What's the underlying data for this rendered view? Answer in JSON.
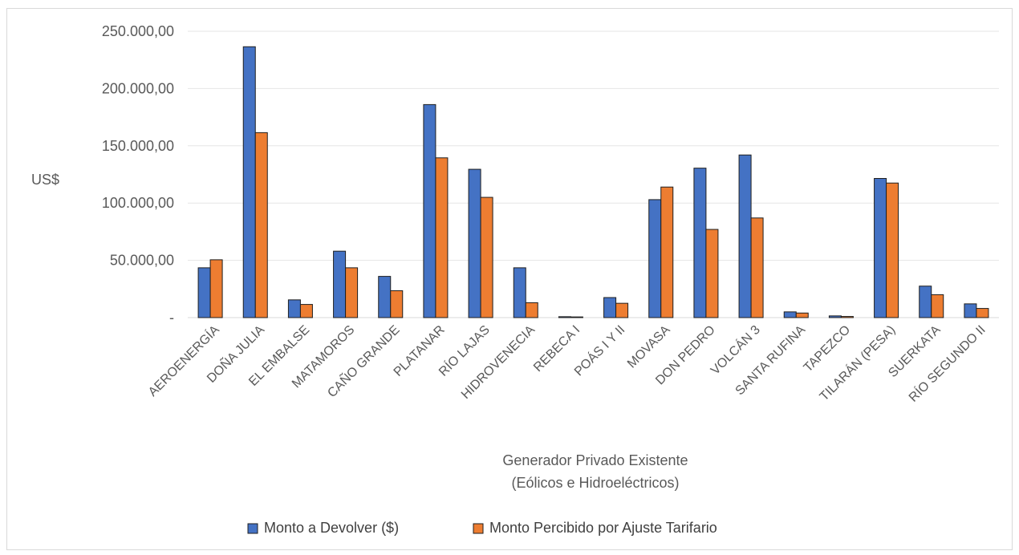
{
  "chart_data": {
    "type": "bar",
    "ylabel": "US$",
    "xlabel_line1": "Generador Privado Existente",
    "xlabel_line2": "(Eólicos e Hidroeléctricos)",
    "ylim": [
      0,
      250000
    ],
    "yticks": [
      {
        "value": 0,
        "label": "-"
      },
      {
        "value": 50000,
        "label": "50.000,00"
      },
      {
        "value": 100000,
        "label": "100.000,00"
      },
      {
        "value": 150000,
        "label": "150.000,00"
      },
      {
        "value": 200000,
        "label": "200.000,00"
      },
      {
        "value": 250000,
        "label": "250.000,00"
      }
    ],
    "grid": true,
    "legend_position": "bottom",
    "categories": [
      "AEROENERGÍA",
      "DOÑA JULIA",
      "EL EMBALSE",
      "MATAMOROS",
      "CAÑO GRANDE",
      "PLATANAR",
      "RÍO LAJAS",
      "HIDROVENECIA",
      "REBECA I",
      "POÁS I Y II",
      "MOVASA",
      "DON PEDRO",
      "VOLCÁN 3",
      "SANTA RUFINA",
      "TAPEZCO",
      "TILARÁN (PESA)",
      "SUERKATA",
      "RÍO SEGUNDO II"
    ],
    "series": [
      {
        "name": "Monto a Devolver ($)",
        "color": "#4472c4",
        "values": [
          43500,
          236500,
          15500,
          58000,
          36000,
          186000,
          129500,
          43500,
          800,
          17500,
          103000,
          130500,
          142000,
          5000,
          1500,
          121500,
          27500,
          12000
        ]
      },
      {
        "name": "Monto Percibido por Ajuste Tarifario",
        "color": "#ed7d31",
        "values": [
          50500,
          161500,
          11500,
          43500,
          23500,
          139500,
          105000,
          13000,
          600,
          12500,
          114000,
          77000,
          87000,
          4000,
          1000,
          117500,
          20000,
          8000
        ]
      }
    ]
  }
}
